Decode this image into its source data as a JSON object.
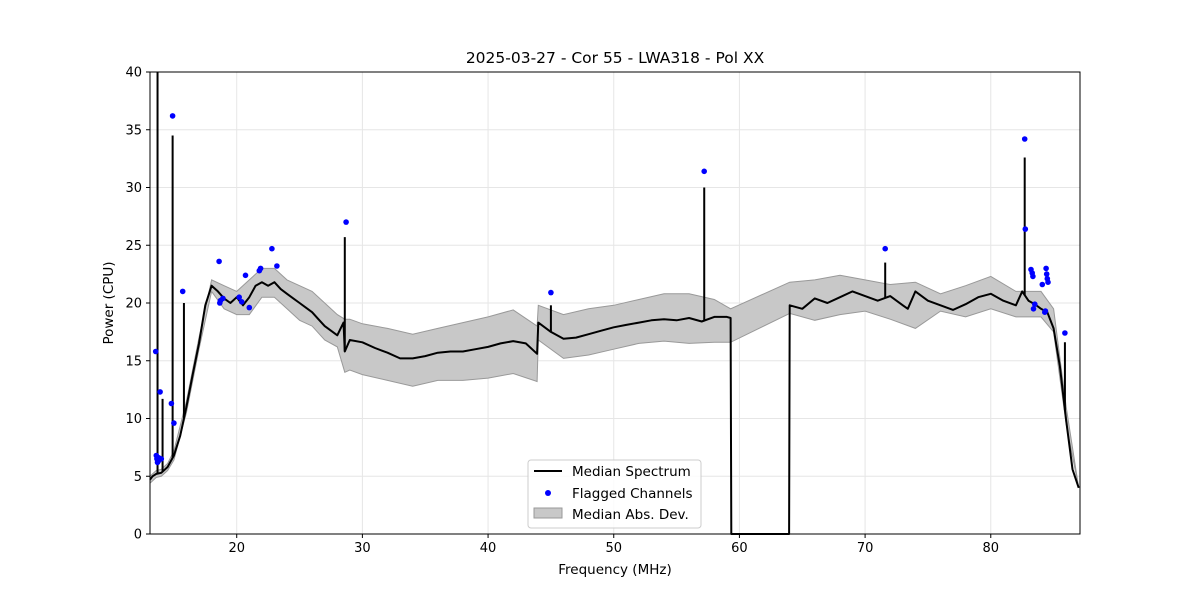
{
  "chart_data": {
    "type": "line",
    "title": "2025-03-27 - Cor 55 - LWA318 - Pol XX",
    "xlabel": "Frequency (MHz)",
    "ylabel": "Power (CPU)",
    "xlim": [
      13.1,
      87.1
    ],
    "ylim": [
      0,
      40
    ],
    "x_ticks": [
      20,
      30,
      40,
      50,
      60,
      70,
      80
    ],
    "y_ticks": [
      0,
      5,
      10,
      15,
      20,
      25,
      30,
      35,
      40
    ],
    "grid": true,
    "legend_position": "lower-center",
    "legend": [
      "Median Spectrum",
      "Flagged Channels",
      "Median Abs. Dev."
    ],
    "colors": {
      "median": "#000000",
      "flagged": "#0000ff",
      "mad_fill": "#c8c8c8",
      "mad_edge": "#999999",
      "grid": "#e6e6e6"
    },
    "series": [
      {
        "name": "Median Spectrum",
        "x": [
          13.1,
          13.3,
          13.6,
          14.0,
          14.5,
          15.0,
          15.5,
          16.0,
          16.5,
          17.0,
          17.5,
          18.0,
          18.5,
          19.0,
          19.5,
          20.0,
          20.5,
          21.0,
          21.5,
          22.0,
          22.5,
          23.0,
          23.5,
          24.0,
          24.5,
          25.0,
          25.5,
          26.0,
          26.5,
          27.0,
          27.5,
          28.0,
          28.5,
          28.6,
          29.0,
          30.0,
          31.0,
          32.0,
          33.0,
          34.0,
          35.0,
          36.0,
          37.0,
          38.0,
          39.0,
          40.0,
          41.0,
          42.0,
          43.0,
          43.9,
          44.0,
          45.0,
          46.0,
          47.0,
          48.0,
          49.0,
          50.0,
          51.0,
          52.0,
          53.0,
          54.0,
          55.0,
          56.0,
          57.0,
          58.0,
          59.0,
          59.3,
          59.35,
          63.95,
          64.0,
          65.0,
          66.0,
          67.0,
          68.0,
          69.0,
          70.0,
          71.0,
          72.0,
          73.0,
          73.4,
          74.0,
          75.0,
          76.0,
          77.0,
          78.0,
          79.0,
          80.0,
          81.0,
          82.0,
          82.5,
          83.0,
          83.5,
          84.0,
          84.5,
          85.0,
          85.5,
          86.0,
          86.5,
          87.0
        ],
        "y": [
          4.7,
          5.0,
          5.2,
          5.3,
          5.8,
          6.8,
          8.5,
          11.0,
          13.8,
          16.5,
          19.8,
          21.5,
          21.0,
          20.4,
          20.0,
          20.5,
          19.8,
          20.5,
          21.5,
          21.8,
          21.5,
          21.8,
          21.2,
          20.8,
          20.4,
          20.0,
          19.6,
          19.2,
          18.6,
          18.0,
          17.6,
          17.2,
          18.3,
          15.8,
          16.8,
          16.6,
          16.1,
          15.7,
          15.2,
          15.2,
          15.4,
          15.7,
          15.8,
          15.8,
          16.0,
          16.2,
          16.5,
          16.7,
          16.5,
          15.6,
          18.3,
          17.5,
          16.9,
          17.0,
          17.3,
          17.6,
          17.9,
          18.1,
          18.3,
          18.5,
          18.6,
          18.5,
          18.7,
          18.4,
          18.8,
          18.8,
          18.7,
          0,
          0,
          19.8,
          19.5,
          20.4,
          20.0,
          20.5,
          21.0,
          20.6,
          20.2,
          20.6,
          19.8,
          19.5,
          21.0,
          20.2,
          19.8,
          19.4,
          19.9,
          20.5,
          20.8,
          20.2,
          19.8,
          21.0,
          20.2,
          19.9,
          19.5,
          19.2,
          17.8,
          14.5,
          9.8,
          5.6,
          4.0
        ]
      }
    ],
    "spikes": [
      {
        "x": 13.7,
        "y": 40.0
      },
      {
        "x": 14.1,
        "y": 11.7
      },
      {
        "x": 14.9,
        "y": 34.5
      },
      {
        "x": 15.8,
        "y": 20.0
      },
      {
        "x": 28.6,
        "y": 25.7
      },
      {
        "x": 45.0,
        "y": 19.8
      },
      {
        "x": 57.2,
        "y": 30.0
      },
      {
        "x": 71.6,
        "y": 23.5
      },
      {
        "x": 82.7,
        "y": 32.6
      },
      {
        "x": 85.9,
        "y": 16.6
      }
    ],
    "mad_band": {
      "name": "Median Abs. Dev.",
      "x": [
        13.1,
        13.6,
        14.0,
        14.5,
        15.0,
        16.0,
        17.0,
        18.0,
        19.0,
        20.0,
        21.0,
        22.0,
        23.0,
        24.0,
        25.0,
        26.0,
        27.0,
        28.0,
        28.6,
        29.0,
        30.0,
        32.0,
        34.0,
        36.0,
        38.0,
        40.0,
        42.0,
        43.9,
        44.0,
        46.0,
        48.0,
        50.0,
        52.0,
        54.0,
        56.0,
        58.0,
        59.3,
        64.0,
        66.0,
        68.0,
        70.0,
        72.0,
        74.0,
        76.0,
        78.0,
        80.0,
        82.0,
        84.0,
        85.0,
        86.0,
        87.0
      ],
      "lower": [
        4.4,
        4.9,
        5.0,
        5.5,
        6.4,
        10.5,
        16.0,
        21.0,
        19.5,
        19.0,
        19.0,
        20.5,
        20.5,
        19.5,
        18.5,
        18.0,
        16.8,
        16.2,
        14.0,
        14.2,
        13.8,
        13.3,
        12.8,
        13.3,
        13.3,
        13.5,
        13.9,
        13.2,
        16.8,
        15.2,
        15.5,
        16.0,
        16.5,
        16.7,
        16.5,
        16.6,
        16.6,
        19.1,
        18.5,
        19.0,
        19.3,
        18.6,
        17.8,
        19.3,
        18.8,
        19.5,
        18.8,
        18.8,
        17.5,
        9.5,
        4.0
      ],
      "upper": [
        5.0,
        5.5,
        5.6,
        6.1,
        7.2,
        11.5,
        17.0,
        22.0,
        21.5,
        21.0,
        22.0,
        23.0,
        23.0,
        22.0,
        21.5,
        21.0,
        20.0,
        19.0,
        18.6,
        18.6,
        18.2,
        17.8,
        17.3,
        17.8,
        18.3,
        18.8,
        19.4,
        18.0,
        19.8,
        19.0,
        19.5,
        19.8,
        20.3,
        20.8,
        20.8,
        20.3,
        19.5,
        21.8,
        22.0,
        22.4,
        22.0,
        21.6,
        21.8,
        20.8,
        21.5,
        22.3,
        21.0,
        21.0,
        19.5,
        11.0,
        4.0
      ]
    },
    "flagged_channels": {
      "name": "Flagged Channels",
      "x": [
        13.55,
        13.6,
        13.65,
        13.7,
        13.75,
        13.8,
        13.9,
        14.0,
        14.8,
        15.0,
        15.7,
        14.9,
        18.6,
        18.65,
        18.7,
        18.9,
        20.2,
        20.4,
        20.7,
        21.0,
        21.8,
        21.9,
        22.8,
        23.2,
        28.7,
        45.0,
        57.2,
        71.6,
        82.7,
        82.75,
        83.2,
        83.3,
        83.35,
        83.4,
        83.5,
        84.1,
        84.3,
        84.35,
        84.4,
        84.45,
        84.5,
        84.55,
        85.9
      ],
      "y": [
        15.8,
        6.8,
        6.5,
        6.2,
        6.3,
        6.6,
        12.3,
        6.5,
        11.3,
        9.6,
        21.0,
        36.2,
        23.6,
        20.0,
        20.2,
        20.4,
        20.5,
        20.1,
        22.4,
        19.6,
        22.8,
        23.0,
        24.7,
        23.2,
        27.0,
        20.9,
        31.4,
        24.7,
        34.2,
        26.4,
        22.9,
        22.6,
        22.3,
        19.5,
        19.9,
        21.6,
        19.2,
        19.3,
        23.0,
        22.5,
        22.1,
        21.8,
        17.4
      ]
    }
  }
}
